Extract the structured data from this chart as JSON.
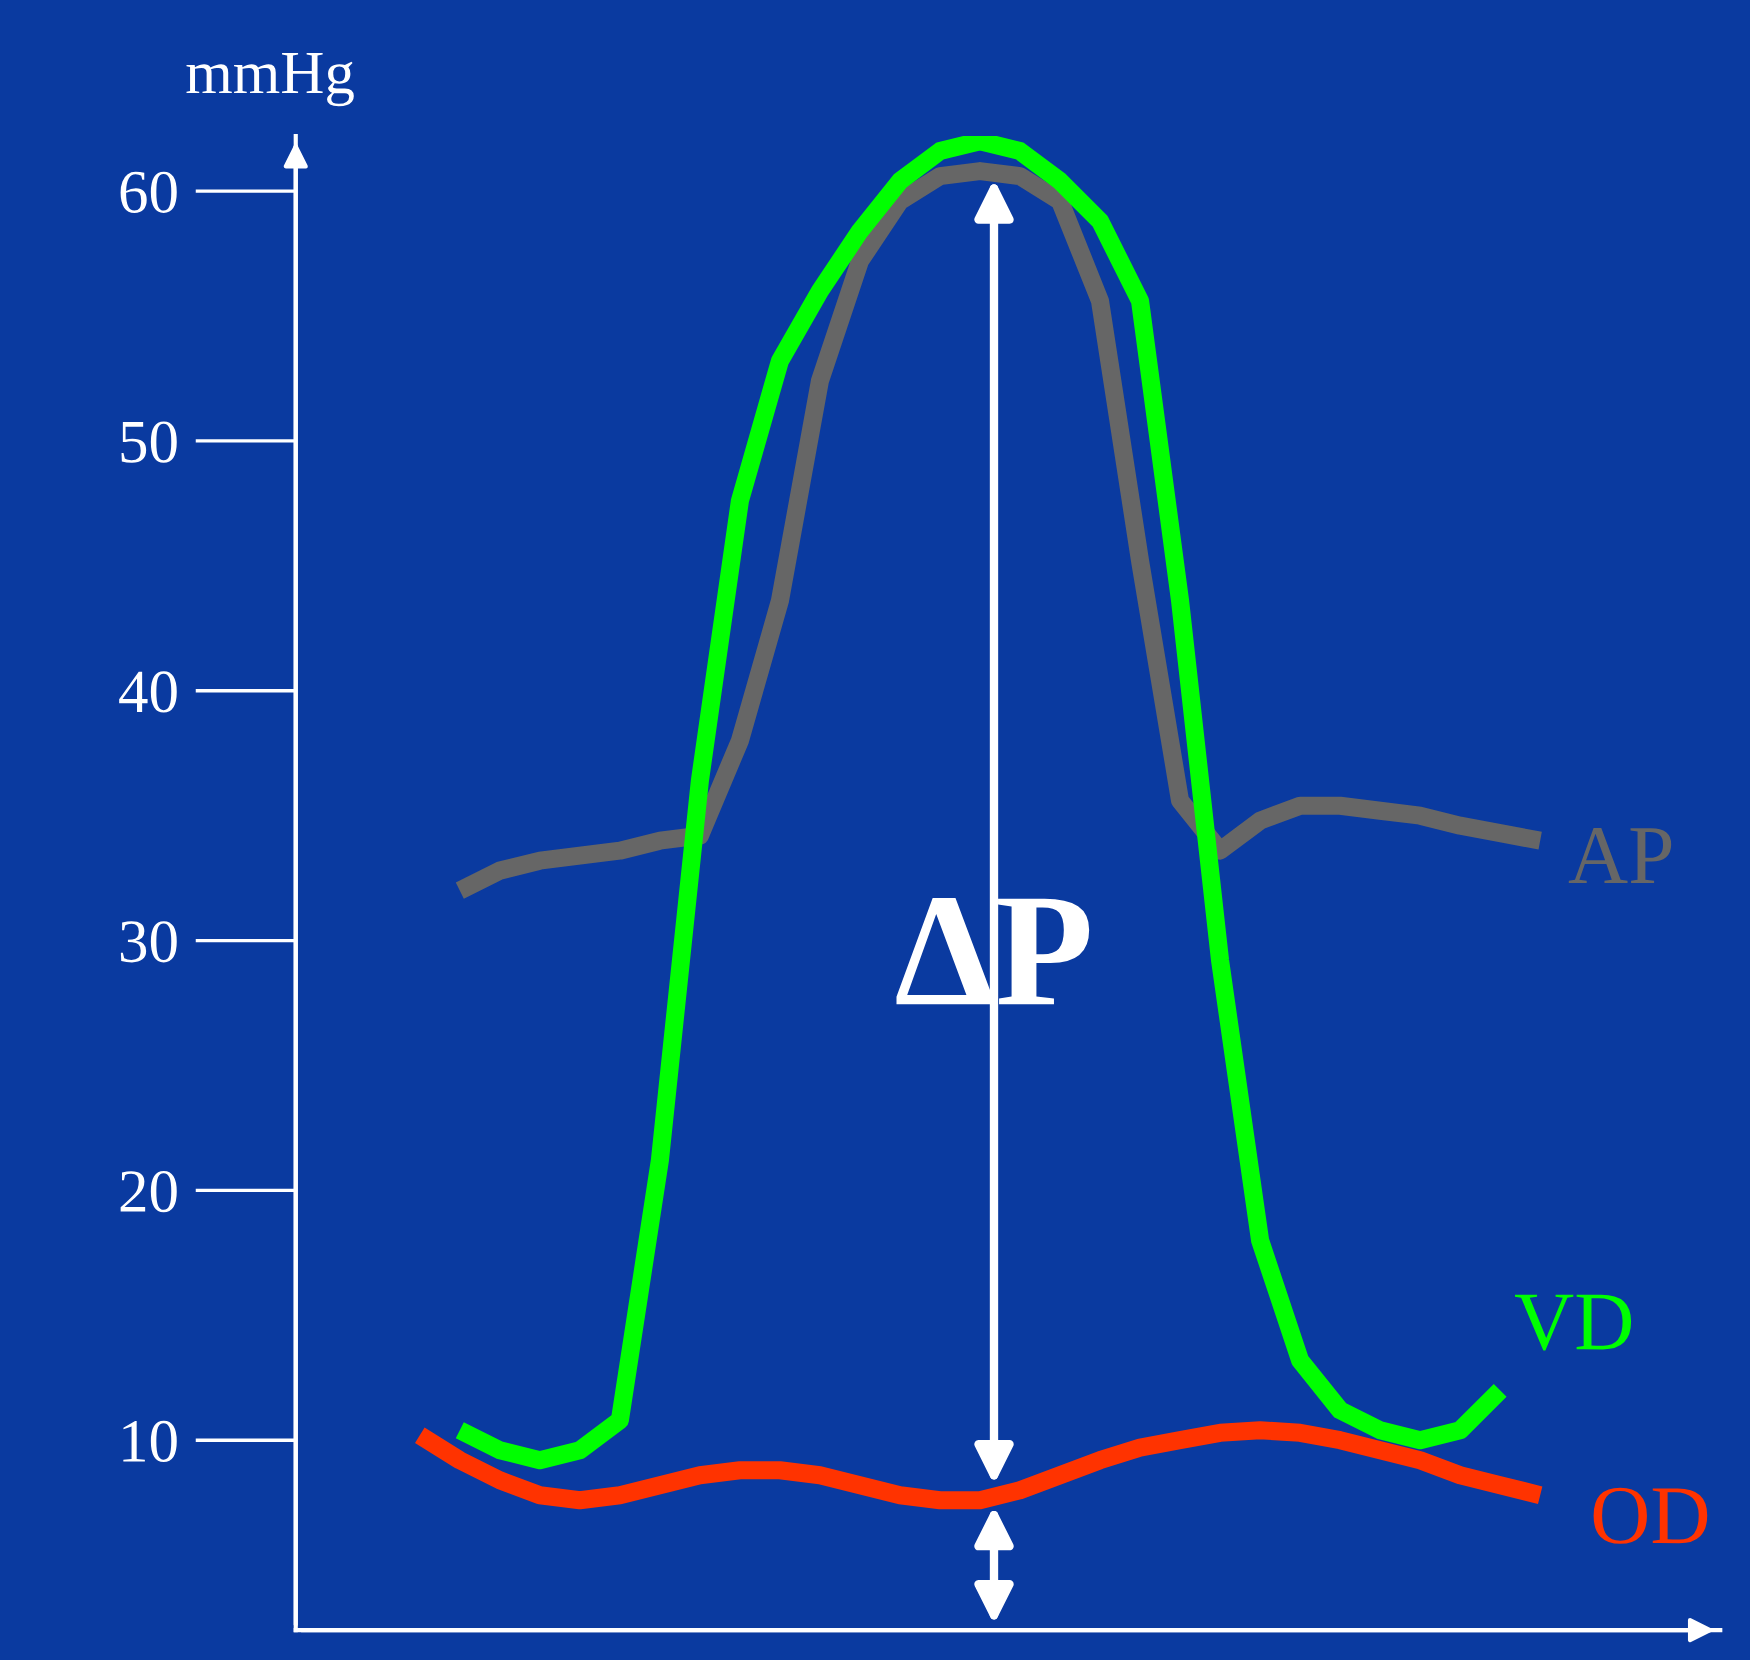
{
  "chart_data": {
    "type": "line",
    "ylabel": "mmHg",
    "categories": [
      null,
      null,
      null,
      null,
      null,
      null,
      null,
      null,
      null,
      null,
      null,
      null,
      null,
      null,
      null,
      null,
      null,
      null,
      null,
      null,
      null,
      null,
      null,
      null,
      null,
      null,
      null,
      null,
      null
    ],
    "series": [
      {
        "name": "AP",
        "color": "#666666",
        "values": [
          null,
          32,
          32.8,
          33.2,
          33.4,
          33.6,
          34,
          34.2,
          38,
          43.6,
          52.4,
          57.2,
          59.6,
          60.6,
          60.8,
          60.6,
          59.6,
          55.6,
          45.2,
          35.6,
          33.6,
          34.8,
          35.4,
          35.4,
          35.2,
          35,
          34.6,
          34.3,
          34
        ]
      },
      {
        "name": "VD",
        "color": "#00ff00",
        "values": [
          null,
          10.4,
          9.6,
          9.2,
          9.6,
          10.8,
          21.2,
          36.4,
          47.6,
          53.2,
          56,
          58.4,
          60.4,
          61.6,
          62,
          61.6,
          60.4,
          58.8,
          55.6,
          43.6,
          29.2,
          18,
          13.2,
          11.2,
          10.4,
          10,
          10.4,
          12,
          null
        ]
      },
      {
        "name": "OD",
        "color": "#ff3300",
        "values": [
          10.2,
          9.2,
          8.4,
          7.8,
          7.6,
          7.8,
          8.2,
          8.6,
          8.8,
          8.8,
          8.6,
          8.2,
          7.8,
          7.6,
          7.6,
          8,
          8.6,
          9.2,
          9.7,
          10,
          10.3,
          10.4,
          10.3,
          10,
          9.6,
          9.2,
          8.6,
          8.2,
          7.8
        ]
      }
    ],
    "annotations": [
      "ΔP"
    ],
    "ylim": [
      2.4,
      62.2
    ],
    "yticks": [
      10,
      20,
      30,
      40,
      50,
      60
    ],
    "tick_labels": "y",
    "grid": false,
    "legend": false
  }
}
